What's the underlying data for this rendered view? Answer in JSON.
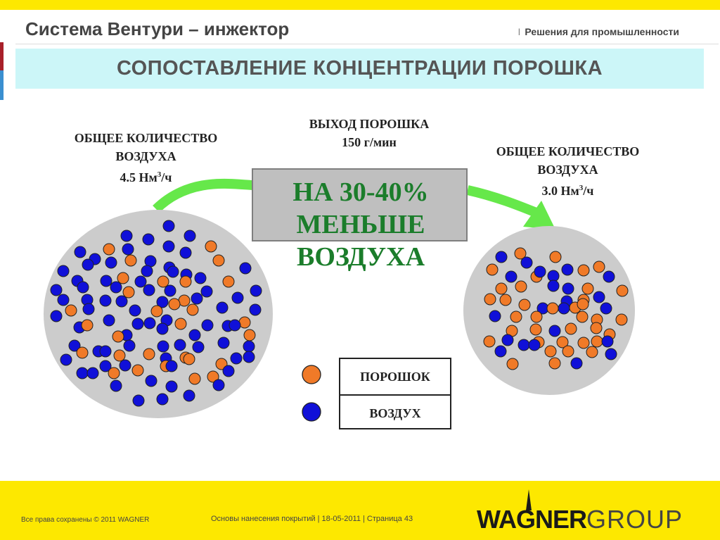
{
  "header": {
    "title": "Система Вентури – инжектор",
    "right_separator": "I",
    "right_text": "Решения для промышленности"
  },
  "banner": {
    "text": "СОПОСТАВЛЕНИЕ КОНЦЕНТРАЦИИ ПОРОШКА"
  },
  "left_label": {
    "line1": "ОБЩЕЕ КОЛИЧЕСТВО",
    "line2": "ВОЗДУХА",
    "value": "4.5 Нм",
    "sup": "3",
    "unit": "/ч"
  },
  "center_label": {
    "line1": "ВЫХОД ПОРОШКА",
    "line2": "150 г/мин"
  },
  "right_label": {
    "line1": "ОБЩЕЕ КОЛИЧЕСТВО",
    "line2": "ВОЗДУХА",
    "value": "3.0 Нм",
    "sup": "3",
    "unit": "/ч"
  },
  "reduction": {
    "line1": "НА 30-40%",
    "line2": "МЕНЬШЕ",
    "line3": "ВОЗДУХА"
  },
  "legend": {
    "powder": "ПОРОШОК",
    "air": "ВОЗДУХ"
  },
  "colors": {
    "powder": "#f07a28",
    "air": "#1010d8",
    "circle_fill": "#cccccc",
    "arrow": "#66e84a",
    "reduction_text": "#1b7d2b",
    "accent_yellow": "#fde800",
    "banner": "#ccf6f8"
  },
  "footer": {
    "copyright": "Все права сохранены © 2011 WAGNER",
    "center": "Основы нанесения покрытий | 18-05-2011 | Страница 43",
    "logo_bold": "WAGNER",
    "logo_light": "GROUP"
  }
}
